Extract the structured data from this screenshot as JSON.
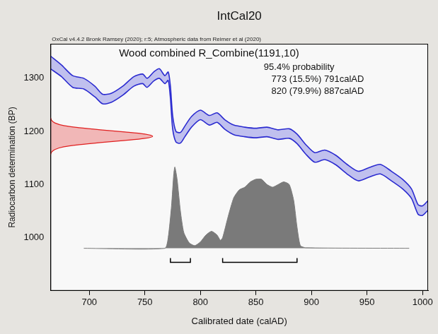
{
  "chart_data": {
    "type": "line",
    "title": "IntCal20",
    "subtitle": "OxCal v4.4.2 Bronk Ramsey (2020); r:5; Atmospheric data from Reimer et al (2020)",
    "x_label": "Calibrated date (calAD)",
    "y_label": "Radiocarbon determination (BP)",
    "xlim": [
      665,
      1005
    ],
    "xticks": [
      700,
      750,
      800,
      850,
      900,
      950,
      1000
    ],
    "ylim": [
      900,
      1365
    ],
    "yticks": [
      1000,
      1100,
      1200,
      1300
    ],
    "grid": false,
    "annotations": [
      "Wood combined R_Combine(1191,10)",
      "95.4% probability",
      "773 (15.5%) 791calAD",
      "820 (79.9%) 887calAD"
    ],
    "calibration_curve": {
      "color": "#2b2bd0",
      "x": [
        665,
        675,
        685,
        695,
        705,
        712,
        720,
        730,
        740,
        748,
        752,
        758,
        763,
        768,
        771,
        773,
        775,
        778,
        782,
        786,
        792,
        800,
        808,
        815,
        822,
        830,
        840,
        850,
        860,
        870,
        880,
        887,
        895,
        903,
        912,
        922,
        932,
        942,
        952,
        962,
        972,
        982,
        990,
        996,
        1000,
        1005
      ],
      "upper": [
        1342,
        1325,
        1305,
        1300,
        1285,
        1270,
        1272,
        1285,
        1303,
        1308,
        1300,
        1312,
        1318,
        1305,
        1312,
        1285,
        1230,
        1200,
        1198,
        1210,
        1228,
        1240,
        1230,
        1235,
        1222,
        1212,
        1208,
        1206,
        1208,
        1203,
        1205,
        1195,
        1175,
        1160,
        1165,
        1155,
        1138,
        1125,
        1132,
        1138,
        1125,
        1110,
        1092,
        1062,
        1060,
        1070
      ],
      "lower": [
        1318,
        1303,
        1283,
        1280,
        1265,
        1252,
        1255,
        1268,
        1285,
        1290,
        1283,
        1295,
        1300,
        1290,
        1296,
        1262,
        1205,
        1180,
        1178,
        1190,
        1208,
        1222,
        1212,
        1217,
        1204,
        1194,
        1190,
        1188,
        1190,
        1185,
        1187,
        1177,
        1157,
        1142,
        1147,
        1137,
        1120,
        1107,
        1114,
        1120,
        1107,
        1092,
        1074,
        1044,
        1042,
        1052
      ]
    },
    "measurement": {
      "color": "#e02020",
      "x": [
        665,
        666,
        669,
        677,
        691,
        710,
        732,
        750,
        757,
        750,
        732,
        710,
        691,
        677,
        669,
        666,
        665
      ],
      "y": [
        1156,
        1161,
        1166,
        1171,
        1175,
        1179,
        1183,
        1187,
        1191,
        1195,
        1199,
        1203,
        1207,
        1211,
        1216,
        1221,
        1226
      ]
    },
    "posterior": {
      "color": "#7a7a7a",
      "x": [
        695,
        768,
        771,
        774,
        776,
        777,
        779,
        782,
        785,
        790,
        795,
        800,
        805,
        810,
        815,
        818,
        820,
        825,
        830,
        835,
        840,
        845,
        850,
        855,
        860,
        865,
        870,
        875,
        880,
        884,
        887,
        890,
        895,
        988
      ],
      "y": [
        980,
        980,
        1000,
        1060,
        1120,
        1133,
        1110,
        1050,
        1010,
        990,
        985,
        992,
        1005,
        1012,
        1005,
        995,
        1000,
        1040,
        1075,
        1090,
        1095,
        1105,
        1110,
        1110,
        1100,
        1095,
        1100,
        1105,
        1100,
        1070,
        1020,
        985,
        981,
        980
      ]
    },
    "ranges": [
      {
        "from": 773,
        "to": 791
      },
      {
        "from": 820,
        "to": 887
      }
    ]
  }
}
